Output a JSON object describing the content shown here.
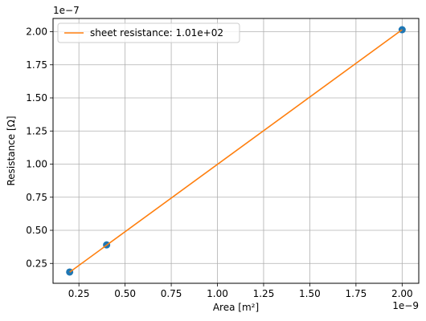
{
  "chart_data": {
    "type": "scatter",
    "xlabel": "Area [m²]",
    "ylabel": "Resistance [Ω]",
    "x_offset_text": "1e−9",
    "y_offset_text": "1e−7",
    "x_ticks": [
      0.25,
      0.5,
      0.75,
      1.0,
      1.25,
      1.5,
      1.75,
      2.0
    ],
    "x_tick_labels": [
      "0.25",
      "0.50",
      "0.75",
      "1.00",
      "1.25",
      "1.50",
      "1.75",
      "2.00"
    ],
    "y_ticks": [
      0.25,
      0.5,
      0.75,
      1.0,
      1.25,
      1.5,
      1.75,
      2.0
    ],
    "y_tick_labels": [
      "0.25",
      "0.50",
      "0.75",
      "1.00",
      "1.25",
      "1.50",
      "1.75",
      "2.00"
    ],
    "xlim": [
      0.11,
      2.09
    ],
    "ylim": [
      0.1,
      2.1
    ],
    "grid": true,
    "legend_placement": "top-left",
    "series": [
      {
        "kind": "scatter",
        "color": "#1f77b4",
        "x": [
          0.2,
          0.4,
          2.0
        ],
        "y": [
          0.185,
          0.39,
          2.015
        ]
      },
      {
        "kind": "line",
        "name": "sheet resistance: 1.01e+02",
        "color": "#ff7f0e",
        "x": [
          0.2,
          2.0
        ],
        "y": [
          0.184,
          2.015
        ]
      }
    ]
  }
}
